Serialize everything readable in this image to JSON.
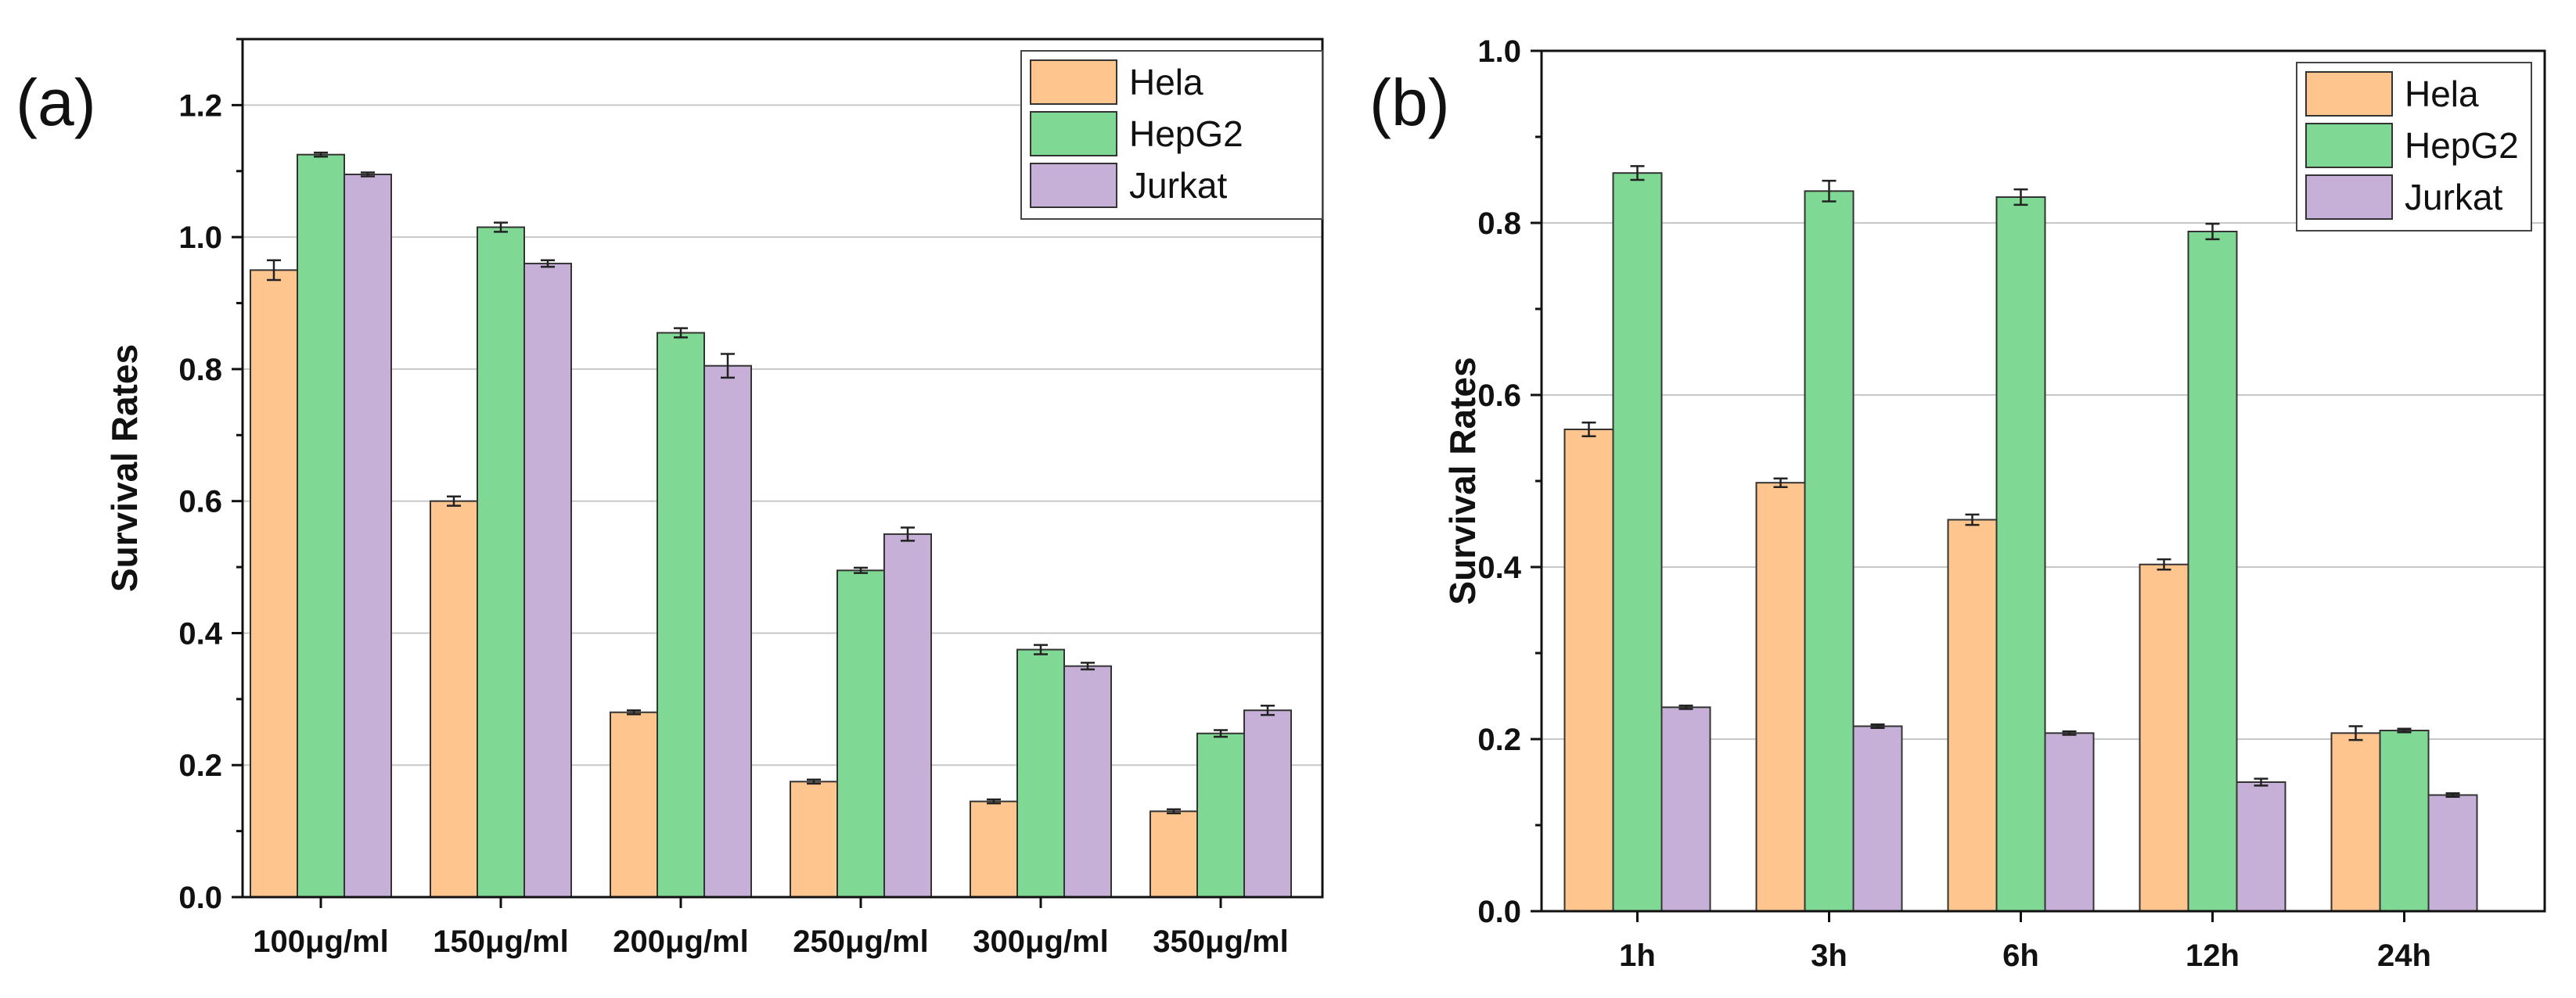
{
  "colors": {
    "Hela": "#fec58f",
    "HepG2": "#7fd893",
    "Jurkat": "#c7b0d8"
  },
  "chart_data": [
    {
      "type": "bar",
      "panel_label": "(a)",
      "xlabel": "",
      "ylabel": "Survival Rates",
      "ylim": [
        0,
        1.3
      ],
      "yticks": [
        "0.0",
        "0.2",
        "0.4",
        "0.6",
        "0.8",
        "1.0",
        "1.2"
      ],
      "grid": true,
      "legend_position": "top-right",
      "categories": [
        "100μg/ml",
        "150μg/ml",
        "200μg/ml",
        "250μg/ml",
        "300μg/ml",
        "350μg/ml"
      ],
      "series": [
        {
          "name": "Hela",
          "values": [
            0.95,
            0.6,
            0.28,
            0.175,
            0.145,
            0.13
          ],
          "errors": [
            0.015,
            0.007,
            0.003,
            0.003,
            0.003,
            0.003
          ]
        },
        {
          "name": "HepG2",
          "values": [
            1.125,
            1.015,
            0.855,
            0.495,
            0.375,
            0.248
          ],
          "errors": [
            0.003,
            0.007,
            0.007,
            0.004,
            0.007,
            0.005
          ]
        },
        {
          "name": "Jurkat",
          "values": [
            1.095,
            0.96,
            0.805,
            0.55,
            0.35,
            0.283
          ],
          "errors": [
            0.003,
            0.005,
            0.018,
            0.01,
            0.005,
            0.007
          ]
        }
      ]
    },
    {
      "type": "bar",
      "panel_label": "(b)",
      "xlabel": "",
      "ylabel": "Survival Rates",
      "ylim": [
        0,
        1.0
      ],
      "yticks": [
        "0.0",
        "0.2",
        "0.4",
        "0.6",
        "0.8",
        "1.0"
      ],
      "grid": true,
      "legend_position": "top-right",
      "categories": [
        "1h",
        "3h",
        "6h",
        "12h",
        "24h"
      ],
      "series": [
        {
          "name": "Hela",
          "values": [
            0.56,
            0.498,
            0.455,
            0.403,
            0.207
          ],
          "errors": [
            0.008,
            0.005,
            0.006,
            0.006,
            0.008
          ]
        },
        {
          "name": "HepG2",
          "values": [
            0.858,
            0.837,
            0.83,
            0.79,
            0.21
          ],
          "errors": [
            0.008,
            0.012,
            0.009,
            0.009,
            0.002
          ]
        },
        {
          "name": "Jurkat",
          "values": [
            0.237,
            0.215,
            0.207,
            0.15,
            0.135
          ],
          "errors": [
            0.002,
            0.002,
            0.002,
            0.004,
            0.002
          ]
        }
      ]
    }
  ]
}
